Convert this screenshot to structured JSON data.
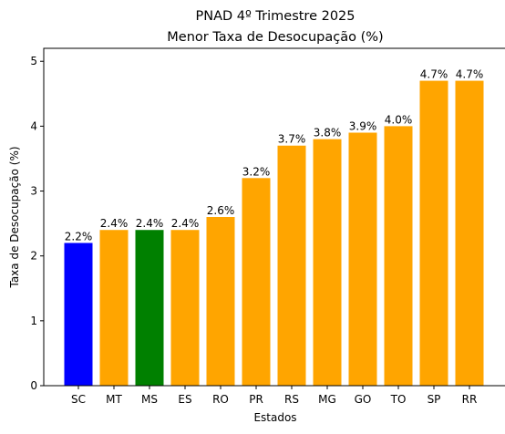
{
  "chart_data": {
    "type": "bar",
    "title": "PNAD 4º Trimestre 2025",
    "subtitle": "Menor Taxa de Desocupação (%)",
    "xlabel": "Estados",
    "ylabel": "Taxa de Desocupação (%)",
    "categories": [
      "SC",
      "MT",
      "MS",
      "ES",
      "RO",
      "PR",
      "RS",
      "MG",
      "GO",
      "TO",
      "SP",
      "RR"
    ],
    "values": [
      2.2,
      2.4,
      2.4,
      2.4,
      2.6,
      3.2,
      3.7,
      3.8,
      3.9,
      4.0,
      4.7,
      4.7
    ],
    "data_labels": [
      "2.2%",
      "2.4%",
      "2.4%",
      "2.4%",
      "2.6%",
      "3.2%",
      "3.7%",
      "3.8%",
      "3.9%",
      "4.0%",
      "4.7%",
      "4.7%"
    ],
    "colors": [
      "#0000ff",
      "#ffa500",
      "#008000",
      "#ffa500",
      "#ffa500",
      "#ffa500",
      "#ffa500",
      "#ffa500",
      "#ffa500",
      "#ffa500",
      "#ffa500",
      "#ffa500"
    ],
    "ylim": [
      0,
      5.2
    ],
    "yticks": [
      0,
      1,
      2,
      3,
      4,
      5
    ],
    "grid": false,
    "legend": "none"
  }
}
